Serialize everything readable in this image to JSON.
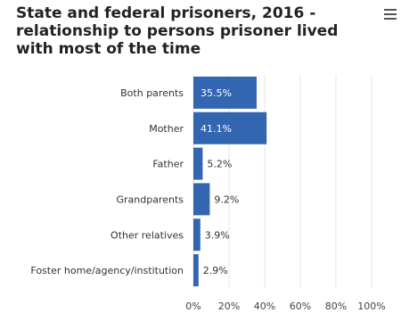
{
  "menu": {
    "icon": "hamburger-icon"
  },
  "chart_data": {
    "type": "bar",
    "orientation": "horizontal",
    "title": "State and federal prisoners, 2016 - relationship to persons prisoner lived with most of the time",
    "categories": [
      "Both parents",
      "Mother",
      "Father",
      "Grandparents",
      "Other relatives",
      "Foster home/agency/institution"
    ],
    "values": [
      35.5,
      41.1,
      5.2,
      9.2,
      3.9,
      2.9
    ],
    "data_labels": [
      "35.5%",
      "41.1%",
      "5.2%",
      "9.2%",
      "3.9%",
      "2.9%"
    ],
    "xlim": [
      0,
      100
    ],
    "xticks": [
      0,
      20,
      40,
      60,
      80,
      100
    ],
    "xtick_labels": [
      "0%",
      "20%",
      "40%",
      "60%",
      "80%",
      "100%"
    ],
    "bar_color": "#3366b0",
    "grid": true,
    "legend": "none"
  }
}
